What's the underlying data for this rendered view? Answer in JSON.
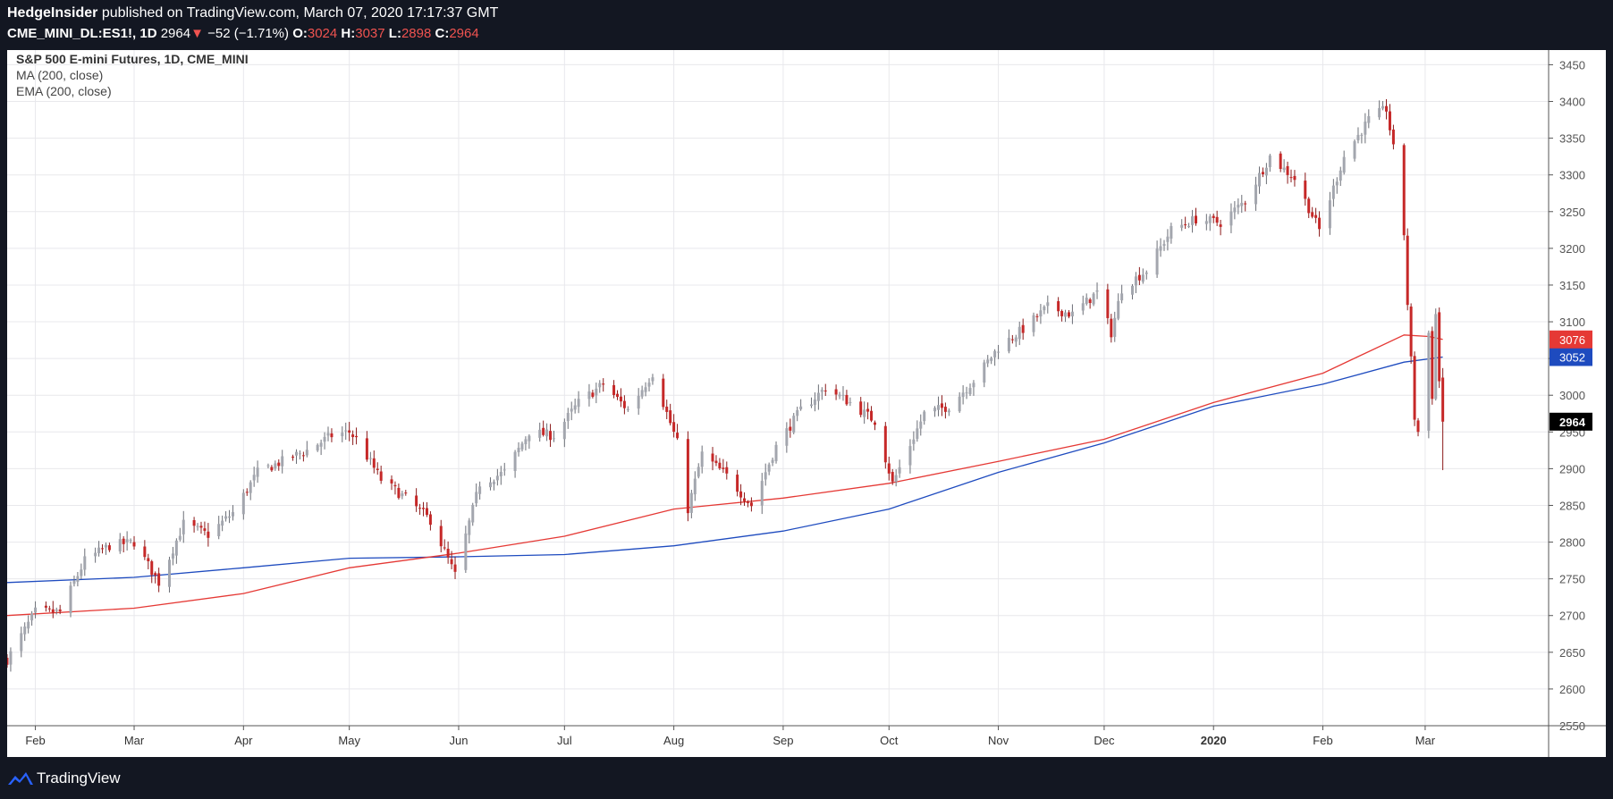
{
  "header": {
    "publisher": "HedgeInsider",
    "published_text": "published on TradingView.com, March 07, 2020 17:17:37 GMT",
    "symbol": "CME_MINI_DL:ES1!, 1D",
    "last": "2964",
    "change_arrow": "▼",
    "change": "−52 (−1.71%)",
    "o_label": "O:",
    "o_value": "3024",
    "h_label": "H:",
    "h_value": "3037",
    "l_label": "L:",
    "l_value": "2898",
    "c_label": "C:",
    "c_value": "2964"
  },
  "legend": {
    "title": "S&P 500 E-mini Futures, 1D, CME_MINI",
    "ma": "MA (200, close)",
    "ema": "EMA (200, close)"
  },
  "footer": {
    "brand": "TradingView",
    "logo_icon": "tradingview-logo-icon"
  },
  "colors": {
    "up": "#a3a6ae",
    "down": "#c62828",
    "ma": "#1e4bbf",
    "ema": "#e53935",
    "background": "#131722"
  },
  "chart_data": {
    "type": "candlestick",
    "title": "S&P 500 E-mini Futures, 1D, CME_MINI",
    "ylim": [
      2550,
      3470
    ],
    "y_ticks": [
      2550,
      2600,
      2650,
      2700,
      2750,
      2800,
      2850,
      2900,
      2950,
      3000,
      3050,
      3100,
      3150,
      3200,
      3250,
      3300,
      3350,
      3400,
      3450
    ],
    "x_labels": [
      {
        "label": "Feb",
        "date": "2019-02-01"
      },
      {
        "label": "Mar",
        "date": "2019-03-01"
      },
      {
        "label": "Apr",
        "date": "2019-04-01"
      },
      {
        "label": "May",
        "date": "2019-05-01"
      },
      {
        "label": "Jun",
        "date": "2019-06-01"
      },
      {
        "label": "Jul",
        "date": "2019-07-01"
      },
      {
        "label": "Aug",
        "date": "2019-08-01"
      },
      {
        "label": "Sep",
        "date": "2019-09-01"
      },
      {
        "label": "Oct",
        "date": "2019-10-01"
      },
      {
        "label": "Nov",
        "date": "2019-11-01"
      },
      {
        "label": "Dec",
        "date": "2019-12-01"
      },
      {
        "label": "2020",
        "date": "2020-01-01",
        "bold": true
      },
      {
        "label": "Feb",
        "date": "2020-02-01"
      },
      {
        "label": "Mar",
        "date": "2020-03-01"
      }
    ],
    "x_range": [
      "2019-01-24",
      "2020-04-05"
    ],
    "closes": [
      [
        "2019-01-24",
        2640
      ],
      [
        "2019-02-01",
        2705
      ],
      [
        "2019-02-08",
        2705
      ],
      [
        "2019-02-15",
        2775
      ],
      [
        "2019-02-22",
        2795
      ],
      [
        "2019-03-01",
        2800
      ],
      [
        "2019-03-08",
        2745
      ],
      [
        "2019-03-15",
        2825
      ],
      [
        "2019-03-22",
        2810
      ],
      [
        "2019-03-29",
        2840
      ],
      [
        "2019-04-05",
        2895
      ],
      [
        "2019-04-12",
        2910
      ],
      [
        "2019-04-19",
        2925
      ],
      [
        "2019-04-26",
        2945
      ],
      [
        "2019-05-01",
        2950
      ],
      [
        "2019-05-03",
        2940
      ],
      [
        "2019-05-10",
        2885
      ],
      [
        "2019-05-17",
        2860
      ],
      [
        "2019-05-24",
        2830
      ],
      [
        "2019-05-31",
        2755
      ],
      [
        "2019-06-07",
        2880
      ],
      [
        "2019-06-14",
        2895
      ],
      [
        "2019-06-21",
        2950
      ],
      [
        "2019-06-28",
        2945
      ],
      [
        "2019-07-05",
        2990
      ],
      [
        "2019-07-12",
        3015
      ],
      [
        "2019-07-19",
        2980
      ],
      [
        "2019-07-26",
        3030
      ],
      [
        "2019-08-02",
        2935
      ],
      [
        "2019-08-05",
        2845
      ],
      [
        "2019-08-09",
        2920
      ],
      [
        "2019-08-16",
        2890
      ],
      [
        "2019-08-23",
        2850
      ],
      [
        "2019-08-30",
        2930
      ],
      [
        "2019-09-06",
        2980
      ],
      [
        "2019-09-13",
        3010
      ],
      [
        "2019-09-20",
        2990
      ],
      [
        "2019-09-27",
        2965
      ],
      [
        "2019-10-02",
        2880
      ],
      [
        "2019-10-11",
        2975
      ],
      [
        "2019-10-18",
        2985
      ],
      [
        "2019-10-25",
        3020
      ],
      [
        "2019-11-01",
        3065
      ],
      [
        "2019-11-08",
        3090
      ],
      [
        "2019-11-15",
        3120
      ],
      [
        "2019-11-22",
        3110
      ],
      [
        "2019-11-29",
        3140
      ],
      [
        "2019-12-03",
        3085
      ],
      [
        "2019-12-06",
        3145
      ],
      [
        "2019-12-13",
        3170
      ],
      [
        "2019-12-20",
        3225
      ],
      [
        "2019-12-27",
        3240
      ],
      [
        "2020-01-03",
        3235
      ],
      [
        "2020-01-10",
        3265
      ],
      [
        "2020-01-17",
        3325
      ],
      [
        "2020-01-24",
        3295
      ],
      [
        "2020-01-31",
        3225
      ],
      [
        "2020-02-07",
        3325
      ],
      [
        "2020-02-14",
        3375
      ],
      [
        "2020-02-19",
        3390
      ],
      [
        "2020-02-21",
        3335
      ],
      [
        "2020-02-24",
        3220
      ],
      [
        "2020-02-25",
        3125
      ],
      [
        "2020-02-27",
        2970
      ],
      [
        "2020-02-28",
        2950
      ],
      [
        "2020-03-02",
        3085
      ],
      [
        "2020-03-03",
        3000
      ],
      [
        "2020-03-04",
        3110
      ],
      [
        "2020-03-05",
        3020
      ],
      [
        "2020-03-06",
        2964
      ]
    ],
    "series": [
      {
        "name": "MA (200, close)",
        "color": "#1e4bbf",
        "last_value": "3052",
        "points": [
          [
            "2019-01-24",
            2745
          ],
          [
            "2019-03-01",
            2752
          ],
          [
            "2019-04-01",
            2765
          ],
          [
            "2019-05-01",
            2778
          ],
          [
            "2019-06-01",
            2780
          ],
          [
            "2019-07-01",
            2783
          ],
          [
            "2019-08-01",
            2795
          ],
          [
            "2019-09-01",
            2815
          ],
          [
            "2019-10-01",
            2845
          ],
          [
            "2019-11-01",
            2895
          ],
          [
            "2019-12-01",
            2935
          ],
          [
            "2020-01-01",
            2985
          ],
          [
            "2020-02-01",
            3015
          ],
          [
            "2020-02-24",
            3045
          ],
          [
            "2020-03-06",
            3052
          ]
        ]
      },
      {
        "name": "EMA (200, close)",
        "color": "#e53935",
        "last_value": "3076",
        "points": [
          [
            "2019-01-24",
            2700
          ],
          [
            "2019-03-01",
            2710
          ],
          [
            "2019-04-01",
            2730
          ],
          [
            "2019-05-01",
            2765
          ],
          [
            "2019-06-01",
            2785
          ],
          [
            "2019-07-01",
            2808
          ],
          [
            "2019-08-01",
            2845
          ],
          [
            "2019-09-01",
            2860
          ],
          [
            "2019-10-01",
            2880
          ],
          [
            "2019-11-01",
            2910
          ],
          [
            "2019-12-01",
            2940
          ],
          [
            "2020-01-01",
            2990
          ],
          [
            "2020-02-01",
            3030
          ],
          [
            "2020-02-24",
            3082
          ],
          [
            "2020-03-02",
            3080
          ],
          [
            "2020-03-06",
            3076
          ]
        ]
      }
    ],
    "last_price_label": "2964"
  }
}
